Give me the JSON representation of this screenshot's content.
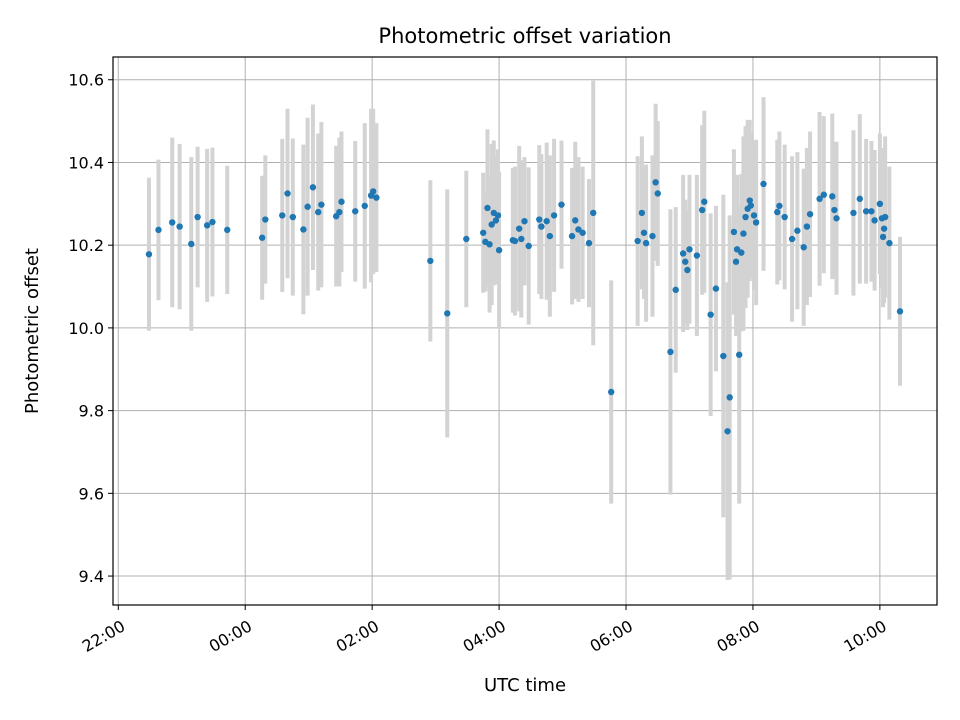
{
  "chart_data": {
    "type": "scatter",
    "title": "Photometric offset variation",
    "xlabel": "UTC time",
    "ylabel": "Photometric offset",
    "x_ticks": [
      "22:00",
      "00:00",
      "02:00",
      "04:00",
      "06:00",
      "08:00",
      "10:00"
    ],
    "y_ticks": [
      "9.4",
      "9.6",
      "9.8",
      "10.0",
      "10.2",
      "10.4",
      "10.6"
    ],
    "xlim": [
      "21:55",
      "10:54"
    ],
    "ylim": [
      9.33,
      10.655
    ],
    "grid": true,
    "colors": {
      "point": "#1f77b4",
      "errorbar": "#d3d3d3",
      "grid": "#b0b0b0"
    },
    "points": [
      {
        "t": "22:29",
        "y": 10.178,
        "err": 0.185
      },
      {
        "t": "22:38",
        "y": 10.237,
        "err": 0.17
      },
      {
        "t": "22:51",
        "y": 10.255,
        "err": 0.205
      },
      {
        "t": "22:58",
        "y": 10.245,
        "err": 0.2
      },
      {
        "t": "23:09",
        "y": 10.203,
        "err": 0.21
      },
      {
        "t": "23:15",
        "y": 10.268,
        "err": 0.17
      },
      {
        "t": "23:24",
        "y": 10.248,
        "err": 0.185
      },
      {
        "t": "23:29",
        "y": 10.256,
        "err": 0.18
      },
      {
        "t": "23:43",
        "y": 10.237,
        "err": 0.155
      },
      {
        "t": "00:16",
        "y": 10.218,
        "err": 0.15
      },
      {
        "t": "00:19",
        "y": 10.262,
        "err": 0.155
      },
      {
        "t": "00:35",
        "y": 10.272,
        "err": 0.185
      },
      {
        "t": "00:40",
        "y": 10.325,
        "err": 0.205
      },
      {
        "t": "00:45",
        "y": 10.268,
        "err": 0.19
      },
      {
        "t": "00:55",
        "y": 10.238,
        "err": 0.205
      },
      {
        "t": "00:59",
        "y": 10.293,
        "err": 0.215
      },
      {
        "t": "01:04",
        "y": 10.34,
        "err": 0.2
      },
      {
        "t": "01:09",
        "y": 10.28,
        "err": 0.19
      },
      {
        "t": "01:12",
        "y": 10.298,
        "err": 0.2
      },
      {
        "t": "01:26",
        "y": 10.27,
        "err": 0.17
      },
      {
        "t": "01:29",
        "y": 10.28,
        "err": 0.18
      },
      {
        "t": "01:31",
        "y": 10.305,
        "err": 0.17
      },
      {
        "t": "01:44",
        "y": 10.282,
        "err": 0.17
      },
      {
        "t": "01:53",
        "y": 10.295,
        "err": 0.2
      },
      {
        "t": "01:59",
        "y": 10.32,
        "err": 0.21
      },
      {
        "t": "02:01",
        "y": 10.33,
        "err": 0.2
      },
      {
        "t": "02:04",
        "y": 10.315,
        "err": 0.18
      },
      {
        "t": "02:55",
        "y": 10.162,
        "err": 0.195
      },
      {
        "t": "03:11",
        "y": 10.035,
        "err": 0.3
      },
      {
        "t": "03:29",
        "y": 10.215,
        "err": 0.165
      },
      {
        "t": "03:45",
        "y": 10.23,
        "err": 0.145
      },
      {
        "t": "03:47",
        "y": 10.208,
        "err": 0.12
      },
      {
        "t": "03:49",
        "y": 10.29,
        "err": 0.19
      },
      {
        "t": "03:51",
        "y": 10.202,
        "err": 0.165
      },
      {
        "t": "03:53",
        "y": 10.25,
        "err": 0.195
      },
      {
        "t": "03:55",
        "y": 10.278,
        "err": 0.175
      },
      {
        "t": "03:57",
        "y": 10.26,
        "err": 0.155
      },
      {
        "t": "03:59",
        "y": 10.272,
        "err": 0.16
      },
      {
        "t": "04:00",
        "y": 10.188,
        "err": 0.19
      },
      {
        "t": "04:13",
        "y": 10.212,
        "err": 0.175
      },
      {
        "t": "04:15",
        "y": 10.21,
        "err": 0.18
      },
      {
        "t": "04:19",
        "y": 10.24,
        "err": 0.2
      },
      {
        "t": "04:21",
        "y": 10.215,
        "err": 0.19
      },
      {
        "t": "04:24",
        "y": 10.258,
        "err": 0.155
      },
      {
        "t": "04:28",
        "y": 10.198,
        "err": 0.19
      },
      {
        "t": "04:38",
        "y": 10.262,
        "err": 0.18
      },
      {
        "t": "04:40",
        "y": 10.245,
        "err": 0.175
      },
      {
        "t": "04:45",
        "y": 10.258,
        "err": 0.19
      },
      {
        "t": "04:48",
        "y": 10.222,
        "err": 0.195
      },
      {
        "t": "04:52",
        "y": 10.272,
        "err": 0.185
      },
      {
        "t": "04:59",
        "y": 10.298,
        "err": 0.155
      },
      {
        "t": "05:09",
        "y": 10.222,
        "err": 0.165
      },
      {
        "t": "05:12",
        "y": 10.26,
        "err": 0.19
      },
      {
        "t": "05:15",
        "y": 10.238,
        "err": 0.175
      },
      {
        "t": "05:19",
        "y": 10.23,
        "err": 0.16
      },
      {
        "t": "05:25",
        "y": 10.205,
        "err": 0.155
      },
      {
        "t": "05:29",
        "y": 10.278,
        "err": 0.32
      },
      {
        "t": "05:46",
        "y": 9.845,
        "err": 0.27
      },
      {
        "t": "06:11",
        "y": 10.21,
        "err": 0.205
      },
      {
        "t": "06:15",
        "y": 10.278,
        "err": 0.185
      },
      {
        "t": "06:17",
        "y": 10.23,
        "err": 0.16
      },
      {
        "t": "06:19",
        "y": 10.205,
        "err": 0.19
      },
      {
        "t": "06:25",
        "y": 10.222,
        "err": 0.195
      },
      {
        "t": "06:28",
        "y": 10.352,
        "err": 0.19
      },
      {
        "t": "06:30",
        "y": 10.325,
        "err": 0.175
      },
      {
        "t": "06:42",
        "y": 9.942,
        "err": 0.345
      },
      {
        "t": "06:47",
        "y": 10.092,
        "err": 0.2
      },
      {
        "t": "06:54",
        "y": 10.18,
        "err": 0.19
      },
      {
        "t": "06:56",
        "y": 10.16,
        "err": 0.15
      },
      {
        "t": "06:58",
        "y": 10.14,
        "err": 0.145
      },
      {
        "t": "07:00",
        "y": 10.19,
        "err": 0.18
      },
      {
        "t": "07:07",
        "y": 10.175,
        "err": 0.195
      },
      {
        "t": "07:12",
        "y": 10.285,
        "err": 0.205
      },
      {
        "t": "07:14",
        "y": 10.305,
        "err": 0.22
      },
      {
        "t": "07:20",
        "y": 10.032,
        "err": 0.245
      },
      {
        "t": "07:25",
        "y": 10.095,
        "err": 0.2
      },
      {
        "t": "07:32",
        "y": 9.932,
        "err": 0.39
      },
      {
        "t": "07:36",
        "y": 9.75,
        "err": 0.36
      },
      {
        "t": "07:38",
        "y": 9.832,
        "err": 0.44
      },
      {
        "t": "07:42",
        "y": 10.232,
        "err": 0.2
      },
      {
        "t": "07:44",
        "y": 10.16,
        "err": 0.18
      },
      {
        "t": "07:45",
        "y": 10.19,
        "err": 0.18
      },
      {
        "t": "07:47",
        "y": 9.935,
        "err": 0.36
      },
      {
        "t": "07:49",
        "y": 10.182,
        "err": 0.19
      },
      {
        "t": "07:51",
        "y": 10.228,
        "err": 0.235
      },
      {
        "t": "07:53",
        "y": 10.268,
        "err": 0.22
      },
      {
        "t": "07:55",
        "y": 10.288,
        "err": 0.215
      },
      {
        "t": "07:57",
        "y": 10.308,
        "err": 0.195
      },
      {
        "t": "07:58",
        "y": 10.296,
        "err": 0.175
      },
      {
        "t": "08:01",
        "y": 10.272,
        "err": 0.18
      },
      {
        "t": "08:03",
        "y": 10.255,
        "err": 0.2
      },
      {
        "t": "08:10",
        "y": 10.348,
        "err": 0.21
      },
      {
        "t": "08:23",
        "y": 10.28,
        "err": 0.175
      },
      {
        "t": "08:25",
        "y": 10.295,
        "err": 0.18
      },
      {
        "t": "08:30",
        "y": 10.268,
        "err": 0.175
      },
      {
        "t": "08:37",
        "y": 10.215,
        "err": 0.2
      },
      {
        "t": "08:42",
        "y": 10.235,
        "err": 0.19
      },
      {
        "t": "08:48",
        "y": 10.195,
        "err": 0.19
      },
      {
        "t": "08:51",
        "y": 10.245,
        "err": 0.19
      },
      {
        "t": "08:54",
        "y": 10.275,
        "err": 0.2
      },
      {
        "t": "09:03",
        "y": 10.312,
        "err": 0.21
      },
      {
        "t": "09:07",
        "y": 10.322,
        "err": 0.19
      },
      {
        "t": "09:15",
        "y": 10.318,
        "err": 0.2
      },
      {
        "t": "09:17",
        "y": 10.285,
        "err": 0.165
      },
      {
        "t": "09:19",
        "y": 10.265,
        "err": 0.185
      },
      {
        "t": "09:35",
        "y": 10.278,
        "err": 0.2
      },
      {
        "t": "09:41",
        "y": 10.312,
        "err": 0.205
      },
      {
        "t": "09:47",
        "y": 10.282,
        "err": 0.175
      },
      {
        "t": "09:52",
        "y": 10.282,
        "err": 0.17
      },
      {
        "t": "09:55",
        "y": 10.26,
        "err": 0.17
      },
      {
        "t": "10:00",
        "y": 10.3,
        "err": 0.17
      },
      {
        "t": "10:02",
        "y": 10.265,
        "err": 0.17
      },
      {
        "t": "10:03",
        "y": 10.22,
        "err": 0.17
      },
      {
        "t": "10:04",
        "y": 10.24,
        "err": 0.18
      },
      {
        "t": "10:05",
        "y": 10.268,
        "err": 0.195
      },
      {
        "t": "10:09",
        "y": 10.205,
        "err": 0.185
      },
      {
        "t": "10:19",
        "y": 10.04,
        "err": 0.18
      }
    ]
  }
}
